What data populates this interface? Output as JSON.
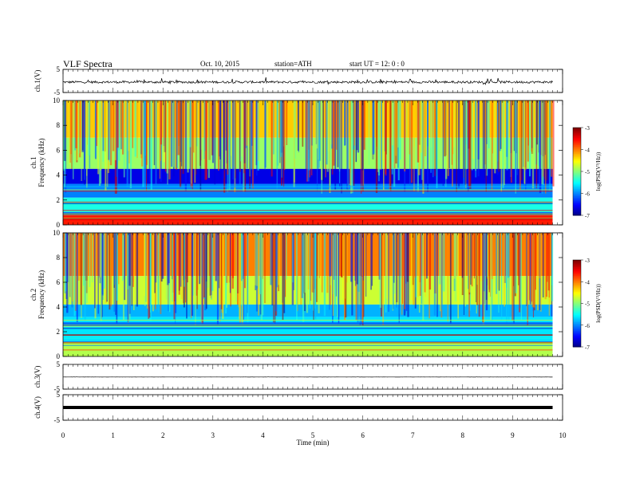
{
  "header": {
    "title": "VLF  Spectra",
    "date": "Oct. 10, 2015",
    "station": "station=ATH",
    "start": "start  UT  =   12: 0  : 0"
  },
  "chart_data": [
    {
      "type": "line",
      "panel": "ch1-waveform",
      "ylabel": "ch.1(V)",
      "ylim": [
        -5,
        5
      ],
      "yticks": [
        "5",
        "-5"
      ],
      "x_unit": "min",
      "xlim": [
        0,
        10
      ],
      "series": [
        {
          "x_range": [
            0,
            9.8
          ],
          "baseline": -0.5,
          "amplitude": 1.0
        }
      ]
    },
    {
      "type": "heatmap",
      "panel": "ch1-spectrogram",
      "ylabel": "ch.1\nFrequency  (kHz)",
      "ylim": [
        0,
        10
      ],
      "yticks": [
        "0",
        "2",
        "4",
        "6",
        "8",
        "10"
      ],
      "xlim": [
        0,
        10
      ],
      "data_x_range": [
        0,
        9.8
      ],
      "colorbar": {
        "label": "log(PSD(V²/Hz))",
        "range": [
          -7,
          -3
        ],
        "ticks": [
          "-3",
          "-4",
          "-5",
          "-6",
          "-7"
        ]
      },
      "levels": [
        {
          "f_range": [
            7,
            10
          ],
          "value": -4.3
        },
        {
          "f_range": [
            4.5,
            7
          ],
          "value": -4.9
        },
        {
          "f_range": [
            3.3,
            4.5
          ],
          "value": -6.6
        },
        {
          "f_range": [
            2.2,
            3.3
          ],
          "value": -6.0
        },
        {
          "f_range": [
            0.8,
            2.2
          ],
          "value": -5.4
        },
        {
          "f_range": [
            0,
            0.8
          ],
          "value": -3.6
        }
      ]
    },
    {
      "type": "heatmap",
      "panel": "ch2-spectrogram",
      "ylabel": "ch.2\nFrequency  (kHz)",
      "ylim": [
        0,
        10
      ],
      "yticks": [
        "0",
        "2",
        "4",
        "6",
        "8",
        "10"
      ],
      "xlim": [
        0,
        10
      ],
      "data_x_range": [
        0,
        9.8
      ],
      "colorbar": {
        "label": "log(PSD(V²/Hz))",
        "range": [
          -7,
          -3
        ],
        "ticks": [
          "-3",
          "-4",
          "-5",
          "-6",
          "-7"
        ]
      },
      "levels": [
        {
          "f_range": [
            6.5,
            10
          ],
          "value": -4.0
        },
        {
          "f_range": [
            4.2,
            6.5
          ],
          "value": -4.7
        },
        {
          "f_range": [
            3.2,
            4.2
          ],
          "value": -5.8
        },
        {
          "f_range": [
            1.2,
            3.2
          ],
          "value": -5.6
        },
        {
          "f_range": [
            0,
            1.2
          ],
          "value": -4.8
        }
      ]
    },
    {
      "type": "line",
      "panel": "ch3-waveform",
      "ylabel": "ch.3(V)",
      "ylim": [
        -5,
        5
      ],
      "yticks": [
        "5",
        "-5"
      ],
      "xlim": [
        0,
        10
      ],
      "series": [
        {
          "x_range": [
            0,
            9.8
          ],
          "baseline": -0.1,
          "amplitude": 0.05
        }
      ]
    },
    {
      "type": "line",
      "panel": "ch4-waveform",
      "ylabel": "ch.4(V)",
      "ylim": [
        -5,
        5
      ],
      "yticks": [
        "5",
        "-5"
      ],
      "xlabel": "Time  (min)",
      "xlim": [
        0,
        10
      ],
      "xticks": [
        "0",
        "1",
        "2",
        "3",
        "4",
        "5",
        "6",
        "7",
        "8",
        "9",
        "10"
      ],
      "series": [
        {
          "x_range": [
            0,
            9.8
          ],
          "baseline": 0.0,
          "amplitude": 0.0
        }
      ]
    }
  ]
}
